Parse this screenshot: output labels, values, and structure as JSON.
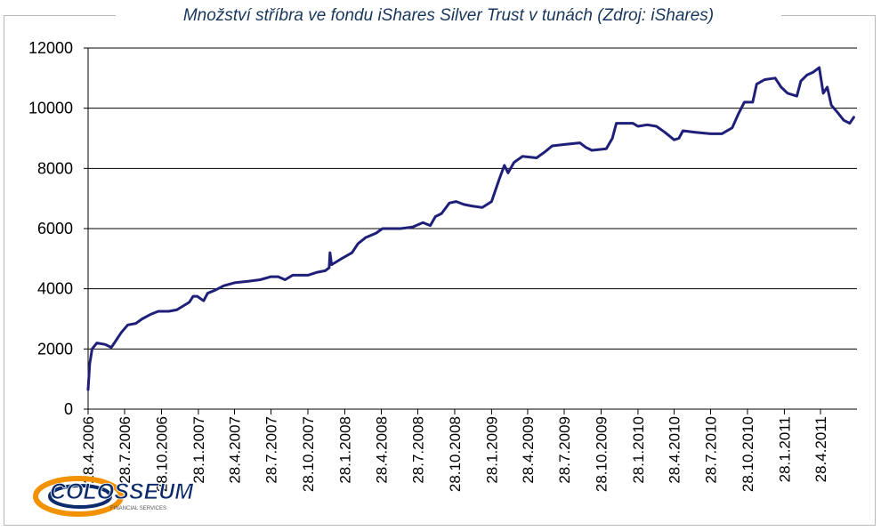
{
  "chart_data": {
    "type": "line",
    "title": "Množství stříbra ve fondu iShares Silver Trust v tunách (Zdroj: iShares)",
    "xlabel": "",
    "ylabel": "",
    "ylim": [
      0,
      12000
    ],
    "yticks": [
      0,
      2000,
      4000,
      6000,
      8000,
      10000,
      12000
    ],
    "xticks": [
      "28.4.2006",
      "28.7.2006",
      "28.10.2006",
      "28.1.2007",
      "28.4.2007",
      "28.7.2007",
      "28.10.2007",
      "28.1.2008",
      "28.4.2008",
      "28.7.2008",
      "28.10.2008",
      "28.1.2009",
      "28.4.2009",
      "28.7.2009",
      "28.10.2009",
      "28.1.2010",
      "28.4.2010",
      "28.7.2010",
      "28.10.2010",
      "28.1.2011",
      "28.4.2011"
    ],
    "grid": true,
    "legend": "none",
    "line_color": "#1f1f7a",
    "series": [
      {
        "name": "",
        "points": [
          [
            "28.4.2006",
            650
          ],
          [
            "2006-05-02",
            1500
          ],
          [
            "2006-05-08",
            2000
          ],
          [
            "2006-05-20",
            2200
          ],
          [
            "2006-06-10",
            2150
          ],
          [
            "2006-06-25",
            2050
          ],
          [
            "2006-07-05",
            2250
          ],
          [
            "2006-07-20",
            2550
          ],
          [
            "2006-08-05",
            2800
          ],
          [
            "2006-08-25",
            2850
          ],
          [
            "2006-09-10",
            3000
          ],
          [
            "2006-10-01",
            3150
          ],
          [
            "2006-10-20",
            3250
          ],
          [
            "2006-11-15",
            3250
          ],
          [
            "2006-12-05",
            3300
          ],
          [
            "2007-01-05",
            3550
          ],
          [
            "2007-01-15",
            3750
          ],
          [
            "2007-01-25",
            3750
          ],
          [
            "2007-02-10",
            3600
          ],
          [
            "2007-02-20",
            3850
          ],
          [
            "2007-03-10",
            3950
          ],
          [
            "2007-04-01",
            4100
          ],
          [
            "2007-04-28",
            4200
          ],
          [
            "2007-06-01",
            4250
          ],
          [
            "2007-07-01",
            4300
          ],
          [
            "2007-07-28",
            4400
          ],
          [
            "2007-08-15",
            4400
          ],
          [
            "2007-09-01",
            4300
          ],
          [
            "2007-09-20",
            4450
          ],
          [
            "2007-10-28",
            4450
          ],
          [
            "2007-11-20",
            4550
          ],
          [
            "2007-12-10",
            4600
          ],
          [
            "2007-12-20",
            4700
          ],
          [
            "2007-12-22",
            5200
          ],
          [
            "2007-12-26",
            4800
          ],
          [
            "2008-01-20",
            5000
          ],
          [
            "2008-02-15",
            5200
          ],
          [
            "2008-03-01",
            5500
          ],
          [
            "2008-03-20",
            5700
          ],
          [
            "2008-04-15",
            5850
          ],
          [
            "2008-05-01",
            6000
          ],
          [
            "2008-06-15",
            6000
          ],
          [
            "2008-07-15",
            6050
          ],
          [
            "2008-08-10",
            6200
          ],
          [
            "2008-08-28",
            6100
          ],
          [
            "2008-09-10",
            6400
          ],
          [
            "2008-09-25",
            6500
          ],
          [
            "2008-10-15",
            6850
          ],
          [
            "2008-11-01",
            6900
          ],
          [
            "2008-11-20",
            6800
          ],
          [
            "2008-12-10",
            6750
          ],
          [
            "2009-01-05",
            6700
          ],
          [
            "2009-01-28",
            6900
          ],
          [
            "2009-02-15",
            7600
          ],
          [
            "2009-03-01",
            8100
          ],
          [
            "2009-03-10",
            7850
          ],
          [
            "2009-03-25",
            8200
          ],
          [
            "2009-04-15",
            8400
          ],
          [
            "2009-05-20",
            8350
          ],
          [
            "2009-06-10",
            8550
          ],
          [
            "2009-06-28",
            8750
          ],
          [
            "2009-08-01",
            8800
          ],
          [
            "2009-09-05",
            8850
          ],
          [
            "2009-09-20",
            8700
          ],
          [
            "2009-10-05",
            8600
          ],
          [
            "2009-11-10",
            8650
          ],
          [
            "2009-11-25",
            9000
          ],
          [
            "2009-12-05",
            9500
          ],
          [
            "2010-01-15",
            9500
          ],
          [
            "2010-01-28",
            9400
          ],
          [
            "2010-02-20",
            9450
          ],
          [
            "2010-03-15",
            9400
          ],
          [
            "2010-04-05",
            9200
          ],
          [
            "2010-04-28",
            8950
          ],
          [
            "2010-05-10",
            9000
          ],
          [
            "2010-05-20",
            9250
          ],
          [
            "2010-06-20",
            9200
          ],
          [
            "2010-07-28",
            9150
          ],
          [
            "2010-08-25",
            9150
          ],
          [
            "2010-09-20",
            9350
          ],
          [
            "2010-10-05",
            9800
          ],
          [
            "2010-10-20",
            10200
          ],
          [
            "2010-11-10",
            10200
          ],
          [
            "2010-11-20",
            10800
          ],
          [
            "2010-12-10",
            10950
          ],
          [
            "2011-01-05",
            11000
          ],
          [
            "2011-01-20",
            10700
          ],
          [
            "2011-02-05",
            10500
          ],
          [
            "2011-02-28",
            10400
          ],
          [
            "2011-03-10",
            10900
          ],
          [
            "2011-03-25",
            11100
          ],
          [
            "2011-04-10",
            11200
          ],
          [
            "2011-04-25",
            11350
          ],
          [
            "2011-05-05",
            10500
          ],
          [
            "2011-05-15",
            10700
          ],
          [
            "2011-05-25",
            10100
          ],
          [
            "2011-06-10",
            9850
          ],
          [
            "2011-06-25",
            9600
          ],
          [
            "2011-07-10",
            9500
          ],
          [
            "2011-07-20",
            9700
          ]
        ]
      }
    ]
  },
  "logo": {
    "name": "COLOSSEUM",
    "tagline": "FINANCIAL SERVICES"
  }
}
